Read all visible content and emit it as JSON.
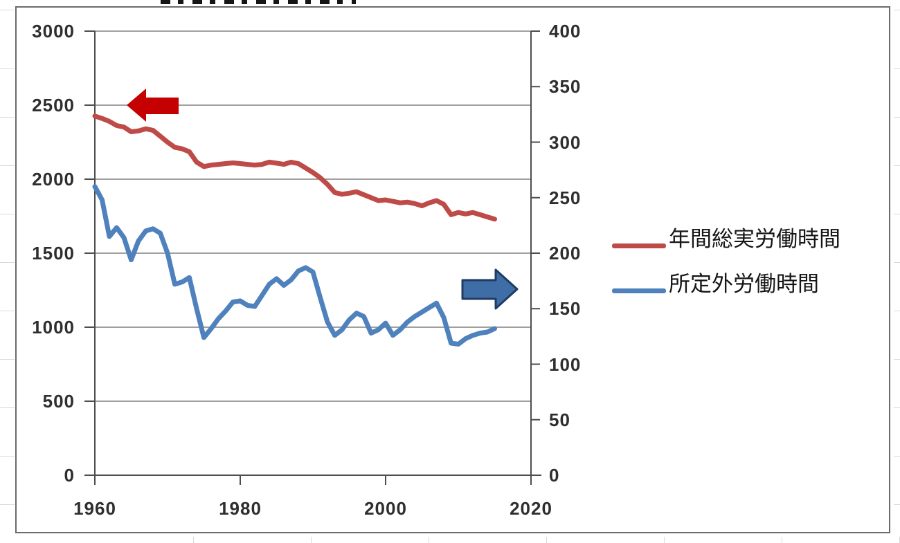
{
  "chart_data": {
    "type": "line",
    "title_visible": false,
    "grid": true,
    "legend_position": "right",
    "x_axis": {
      "tick_labels": [
        "1960",
        "1980",
        "2000",
        "2020"
      ],
      "range": [
        1960,
        2020
      ]
    },
    "left_axis": {
      "tick_labels": [
        "3000",
        "2500",
        "2000",
        "1500",
        "1000",
        "500",
        "0"
      ],
      "range": [
        0,
        3000
      ]
    },
    "right_axis": {
      "tick_labels": [
        "400",
        "350",
        "300",
        "250",
        "200",
        "150",
        "100",
        "50",
        "0"
      ],
      "range": [
        0,
        400
      ]
    },
    "years": [
      1960,
      1961,
      1962,
      1963,
      1964,
      1965,
      1966,
      1967,
      1968,
      1969,
      1970,
      1971,
      1972,
      1973,
      1974,
      1975,
      1976,
      1977,
      1978,
      1979,
      1980,
      1981,
      1982,
      1983,
      1984,
      1985,
      1986,
      1987,
      1988,
      1989,
      1990,
      1991,
      1992,
      1993,
      1994,
      1995,
      1996,
      1997,
      1998,
      1999,
      2000,
      2001,
      2002,
      2003,
      2004,
      2005,
      2006,
      2007,
      2008,
      2009,
      2010,
      2011,
      2012,
      2013,
      2014,
      2015
    ],
    "series": [
      {
        "name": "年間総実労働時間",
        "axis": "left",
        "color": "#BE4B48",
        "values": [
          2426,
          2410,
          2390,
          2362,
          2352,
          2320,
          2326,
          2340,
          2330,
          2290,
          2250,
          2215,
          2205,
          2185,
          2115,
          2085,
          2095,
          2100,
          2105,
          2110,
          2105,
          2100,
          2095,
          2100,
          2115,
          2108,
          2100,
          2115,
          2105,
          2075,
          2045,
          2010,
          1965,
          1910,
          1898,
          1905,
          1915,
          1895,
          1875,
          1855,
          1860,
          1850,
          1840,
          1845,
          1835,
          1820,
          1840,
          1855,
          1830,
          1760,
          1775,
          1765,
          1775,
          1760,
          1745,
          1730
        ]
      },
      {
        "name": "所定外労働時間",
        "axis": "right",
        "color": "#4F81BD",
        "values": [
          260,
          248,
          215,
          223,
          214,
          194,
          211,
          220,
          222,
          218,
          200,
          172,
          174,
          178,
          150,
          124,
          132,
          141,
          148,
          156,
          157,
          153,
          152,
          162,
          172,
          177,
          171,
          176,
          184,
          187,
          183,
          160,
          138,
          126,
          131,
          140,
          146,
          143,
          128,
          131,
          137,
          126,
          131,
          138,
          143,
          147,
          151,
          155,
          142,
          119,
          118,
          123,
          126,
          128,
          129,
          132
        ]
      }
    ],
    "annotations": [
      {
        "shape": "arrow-left",
        "color": "#C40000",
        "refers_to": "left-axis"
      },
      {
        "shape": "arrow-right",
        "color": "#3F6EA6",
        "refers_to": "right-axis"
      }
    ]
  }
}
